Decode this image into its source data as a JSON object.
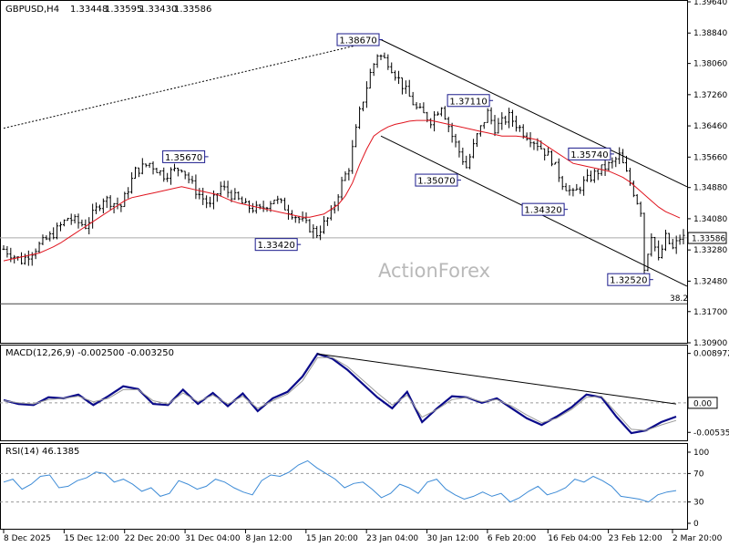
{
  "header": {
    "symbol": "GBPUSD,H4",
    "open": "1.33448",
    "high": "1.33595",
    "low": "1.33430",
    "close": "1.33586"
  },
  "watermark": "ActionForex",
  "colors": {
    "bars": "#000000",
    "ma": "#e0141e",
    "macd_main": "#0a0a8a",
    "macd_signal": "#9a9a9a",
    "rsi": "#3d8bd6",
    "level_box": "#1a1a8c"
  },
  "chart_data": [
    {
      "panel": "price",
      "type": "ohlc",
      "symbol": "GBPUSD",
      "timeframe": "H4",
      "ylim": [
        1.309,
        1.3964
      ],
      "y_ticks": [
        "1.39640",
        "1.38840",
        "1.38060",
        "1.37260",
        "1.36460",
        "1.35660",
        "1.34880",
        "1.34080",
        "1.33280",
        "1.32480",
        "1.31700",
        "1.30900"
      ],
      "x_ticks": [
        "8 Dec 2025",
        "15 Dec 12:00",
        "22 Dec 20:00",
        "31 Dec 04:00",
        "8 Jan 12:00",
        "15 Jan 20:00",
        "23 Jan 04:00",
        "30 Jan 12:00",
        "6 Feb 20:00",
        "16 Feb 04:00",
        "23 Feb 12:00",
        "2 Mar 20:00"
      ],
      "close_path": [
        [
          0,
          1.333
        ],
        [
          5,
          1.33
        ],
        [
          10,
          1.334
        ],
        [
          14,
          1.337
        ],
        [
          18,
          1.341
        ],
        [
          23,
          1.339
        ],
        [
          28,
          1.346
        ],
        [
          33,
          1.344
        ],
        [
          37,
          1.353
        ],
        [
          41,
          1.355
        ],
        [
          45,
          1.352
        ],
        [
          50,
          1.354
        ],
        [
          54,
          1.348
        ],
        [
          58,
          1.344
        ],
        [
          61,
          1.349
        ],
        [
          64,
          1.347
        ],
        [
          68,
          1.344
        ],
        [
          72,
          1.343
        ],
        [
          76,
          1.346
        ],
        [
          80,
          1.343
        ],
        [
          84,
          1.34
        ],
        [
          88,
          1.337
        ],
        [
          92,
          1.342
        ],
        [
          95,
          1.35
        ],
        [
          97,
          1.354
        ],
        [
          100,
          1.368
        ],
        [
          103,
          1.378
        ],
        [
          105,
          1.383
        ],
        [
          108,
          1.381
        ],
        [
          112,
          1.375
        ],
        [
          116,
          1.369
        ],
        [
          120,
          1.366
        ],
        [
          123,
          1.37
        ],
        [
          126,
          1.362
        ],
        [
          130,
          1.354
        ],
        [
          133,
          1.362
        ],
        [
          136,
          1.368
        ],
        [
          138,
          1.364
        ],
        [
          142,
          1.367
        ],
        [
          146,
          1.363
        ],
        [
          150,
          1.36
        ],
        [
          154,
          1.356
        ],
        [
          157,
          1.35
        ],
        [
          160,
          1.347
        ],
        [
          163,
          1.35
        ],
        [
          167,
          1.353
        ],
        [
          171,
          1.355
        ],
        [
          173,
          1.357
        ],
        [
          176,
          1.35
        ],
        [
          179,
          1.343
        ],
        [
          180,
          1.328
        ],
        [
          182,
          1.337
        ],
        [
          184,
          1.33
        ],
        [
          186,
          1.336
        ],
        [
          188,
          1.333
        ],
        [
          190,
          1.3359
        ]
      ],
      "ma_path": [
        [
          0,
          1.33
        ],
        [
          5,
          1.331
        ],
        [
          10,
          1.332
        ],
        [
          15,
          1.334
        ],
        [
          20,
          1.337
        ],
        [
          25,
          1.34
        ],
        [
          30,
          1.343
        ],
        [
          35,
          1.346
        ],
        [
          40,
          1.347
        ],
        [
          45,
          1.348
        ],
        [
          50,
          1.349
        ],
        [
          55,
          1.348
        ],
        [
          60,
          1.347
        ],
        [
          65,
          1.345
        ],
        [
          70,
          1.344
        ],
        [
          75,
          1.343
        ],
        [
          80,
          1.342
        ],
        [
          85,
          1.341
        ],
        [
          90,
          1.342
        ],
        [
          95,
          1.345
        ],
        [
          98,
          1.35
        ],
        [
          101,
          1.357
        ],
        [
          104,
          1.362
        ],
        [
          107,
          1.364
        ],
        [
          110,
          1.365
        ],
        [
          115,
          1.366
        ],
        [
          120,
          1.366
        ],
        [
          125,
          1.365
        ],
        [
          130,
          1.364
        ],
        [
          135,
          1.363
        ],
        [
          140,
          1.362
        ],
        [
          145,
          1.362
        ],
        [
          150,
          1.361
        ],
        [
          155,
          1.358
        ],
        [
          160,
          1.355
        ],
        [
          165,
          1.354
        ],
        [
          170,
          1.353
        ],
        [
          175,
          1.351
        ],
        [
          180,
          1.347
        ],
        [
          185,
          1.343
        ],
        [
          190,
          1.341
        ]
      ],
      "annotations": [
        {
          "text": "1.38670",
          "x": 106,
          "y": 1.3867,
          "anchor": "right"
        },
        {
          "text": "1.37110",
          "x": 137,
          "y": 1.3711,
          "anchor": "right"
        },
        {
          "text": "1.35670",
          "x": 57,
          "y": 1.3567,
          "anchor": "right"
        },
        {
          "text": "1.35070",
          "x": 128,
          "y": 1.3507,
          "anchor": "right"
        },
        {
          "text": "1.34320",
          "x": 158,
          "y": 1.3432,
          "anchor": "right"
        },
        {
          "text": "1.33420",
          "x": 83,
          "y": 1.3342,
          "anchor": "right"
        },
        {
          "text": "1.35740",
          "x": 171,
          "y": 1.3574,
          "anchor": "right"
        },
        {
          "text": "1.32520",
          "x": 182,
          "y": 1.3252,
          "anchor": "right"
        }
      ],
      "trendlines": [
        {
          "style": "dotted",
          "from": [
            0,
            1.364
          ],
          "to": [
            106,
            1.3867
          ]
        },
        {
          "style": "solid",
          "from": [
            106,
            1.3867
          ],
          "to": [
            192,
            1.349
          ]
        },
        {
          "style": "solid",
          "from": [
            106,
            1.362
          ],
          "to": [
            192,
            1.3235
          ]
        }
      ],
      "hlines": [
        {
          "value": 1.3359,
          "color": "#aaaaaa"
        },
        {
          "value": 1.319,
          "color": "#444444",
          "label": "38.2"
        }
      ],
      "current_price": "1.33586"
    },
    {
      "panel": "macd",
      "type": "line",
      "title": "MACD(12,26,9) -0.002500 -0.003250",
      "ylim": [
        -0.0068,
        0.0104
      ],
      "y_ticks": [
        "0.008972",
        "0.00",
        "-0.005356"
      ],
      "zero_box": "0.00",
      "series": [
        {
          "name": "MACD",
          "values": [
            0.0005,
            -0.0002,
            -0.0004,
            0.001,
            0.0008,
            0.0015,
            -0.0004,
            0.0012,
            0.003,
            0.0025,
            -0.0002,
            -0.0004,
            0.0024,
            -0.0002,
            0.0018,
            -0.0006,
            0.0017,
            -0.0015,
            0.0008,
            0.002,
            0.0048,
            0.0089,
            0.008,
            0.006,
            0.0035,
            0.001,
            -0.001,
            0.002,
            -0.0035,
            -0.001,
            0.0012,
            0.001,
            0.0,
            0.0008,
            -0.001,
            -0.0028,
            -0.004,
            -0.0025,
            -0.0008,
            0.0015,
            0.001,
            -0.0025,
            -0.0055,
            -0.005,
            -0.0035,
            -0.0025
          ]
        },
        {
          "name": "Signal",
          "values": [
            0.0004,
            0.0,
            -0.0002,
            0.0006,
            0.0008,
            0.0012,
            0.0002,
            0.0008,
            0.0024,
            0.0024,
            0.0004,
            -0.0002,
            0.0018,
            0.0002,
            0.0014,
            -0.0002,
            0.0012,
            -0.001,
            0.0004,
            0.0016,
            0.004,
            0.0082,
            0.0082,
            0.0066,
            0.0042,
            0.0018,
            -0.0004,
            0.0014,
            -0.0026,
            -0.0012,
            0.0006,
            0.001,
            0.0002,
            0.0006,
            -0.0006,
            -0.0022,
            -0.0036,
            -0.0028,
            -0.0012,
            0.001,
            0.0012,
            -0.0018,
            -0.0048,
            -0.005,
            -0.004,
            -0.0032
          ]
        }
      ],
      "trendline": {
        "from": [
          21,
          0.0089
        ],
        "to": [
          45,
          -0.0002
        ]
      }
    },
    {
      "panel": "rsi",
      "type": "line",
      "title": "RSI(14) 46.1385",
      "ylim": [
        0,
        100
      ],
      "y_ticks": [
        "100",
        "70",
        "30",
        "0"
      ],
      "levels": [
        70,
        30
      ],
      "series": [
        {
          "name": "RSI",
          "values": [
            58,
            62,
            48,
            55,
            66,
            68,
            50,
            52,
            60,
            64,
            72,
            70,
            58,
            62,
            55,
            45,
            50,
            38,
            42,
            60,
            55,
            48,
            52,
            62,
            58,
            50,
            44,
            40,
            60,
            68,
            66,
            72,
            82,
            88,
            78,
            70,
            62,
            50,
            56,
            58,
            48,
            36,
            42,
            55,
            50,
            42,
            58,
            62,
            48,
            40,
            34,
            38,
            44,
            38,
            42,
            30,
            36,
            45,
            52,
            40,
            44,
            50,
            62,
            58,
            66,
            60,
            52,
            38,
            36,
            34,
            30,
            40,
            44,
            46
          ]
        }
      ]
    }
  ]
}
